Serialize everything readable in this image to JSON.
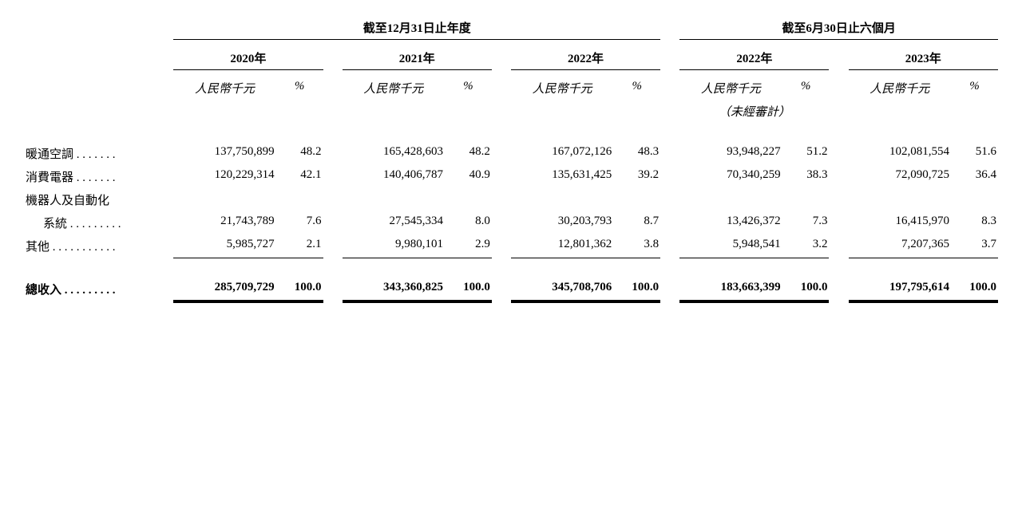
{
  "type": "table",
  "background_color": "#ffffff",
  "text_color": "#000000",
  "font_family": "Times New Roman / SimSun",
  "header_fontsize": 15,
  "body_fontsize": 15,
  "periods": {
    "annual": {
      "title": "截至12月31日止年度",
      "years": [
        "2020年",
        "2021年",
        "2022年"
      ]
    },
    "interim": {
      "title": "截至6月30日止六個月",
      "years": [
        "2022年",
        "2023年"
      ]
    }
  },
  "subheaders": {
    "amount": "人民幣千元",
    "percent": "%",
    "unaudited": "（未經審計）"
  },
  "rows": [
    {
      "label": "暖通空調",
      "dotted": "暖通空調 . . . . . . .",
      "data": [
        {
          "amt": "137,750,899",
          "pct": "48.2"
        },
        {
          "amt": "165,428,603",
          "pct": "48.2"
        },
        {
          "amt": "167,072,126",
          "pct": "48.3"
        },
        {
          "amt": "93,948,227",
          "pct": "51.2"
        },
        {
          "amt": "102,081,554",
          "pct": "51.6"
        }
      ]
    },
    {
      "label": "消費電器",
      "dotted": "消費電器 . . . . . . .",
      "data": [
        {
          "amt": "120,229,314",
          "pct": "42.1"
        },
        {
          "amt": "140,406,787",
          "pct": "40.9"
        },
        {
          "amt": "135,631,425",
          "pct": "39.2"
        },
        {
          "amt": "70,340,259",
          "pct": "38.3"
        },
        {
          "amt": "72,090,725",
          "pct": "36.4"
        }
      ]
    },
    {
      "label": "機器人及自動化",
      "sublabel": "系統",
      "dotted_a": "機器人及自動化",
      "dotted_b": "系統  . . . . . . . . .",
      "indent": true,
      "data": [
        {
          "amt": "21,743,789",
          "pct": "7.6"
        },
        {
          "amt": "27,545,334",
          "pct": "8.0"
        },
        {
          "amt": "30,203,793",
          "pct": "8.7"
        },
        {
          "amt": "13,426,372",
          "pct": "7.3"
        },
        {
          "amt": "16,415,970",
          "pct": "8.3"
        }
      ]
    },
    {
      "label": "其他",
      "dotted": "其他 . . . . . . . . . . .",
      "data": [
        {
          "amt": "5,985,727",
          "pct": "2.1"
        },
        {
          "amt": "9,980,101",
          "pct": "2.9"
        },
        {
          "amt": "12,801,362",
          "pct": "3.8"
        },
        {
          "amt": "5,948,541",
          "pct": "3.2"
        },
        {
          "amt": "7,207,365",
          "pct": "3.7"
        }
      ]
    }
  ],
  "total": {
    "label": "總收入",
    "dotted": "總收入 . . . . . . . . .",
    "data": [
      {
        "amt": "285,709,729",
        "pct": "100.0"
      },
      {
        "amt": "343,360,825",
        "pct": "100.0"
      },
      {
        "amt": "345,708,706",
        "pct": "100.0"
      },
      {
        "amt": "183,663,399",
        "pct": "100.0"
      },
      {
        "amt": "197,795,614",
        "pct": "100.0"
      }
    ]
  }
}
